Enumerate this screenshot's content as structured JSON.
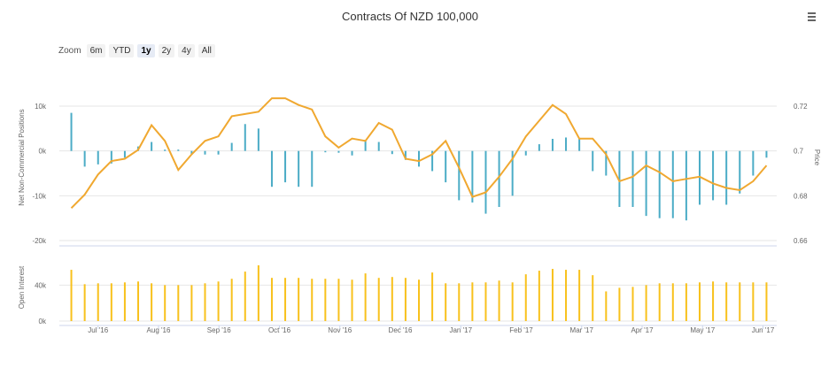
{
  "chart_data": {
    "type": "bar+line",
    "title": "Contracts Of NZD 100,000",
    "zoom": {
      "label": "Zoom",
      "buttons": [
        "6m",
        "YTD",
        "1y",
        "2y",
        "4y",
        "All"
      ],
      "active": "1y"
    },
    "x_tick_labels": [
      "Jul '16",
      "Aug '16",
      "Sep '16",
      "Oct '16",
      "Nov '16",
      "Dec '16",
      "Jan '17",
      "Feb '17",
      "Mar '17",
      "Apr '17",
      "May '17",
      "Jun '17"
    ],
    "top_panel": {
      "left_axis": {
        "label": "Net Non-Commercial Positions",
        "ticks": [
          "10k",
          "0k",
          "-10k",
          "-20k"
        ],
        "range": [
          -20000,
          10000
        ]
      },
      "right_axis": {
        "label": "Price",
        "ticks": [
          "0.72",
          "0.7",
          "0.68",
          "0.66"
        ],
        "range": [
          0.66,
          0.72
        ]
      },
      "bars": {
        "name": "Net Non-Commercial Positions",
        "color": "#4bacc6",
        "values": [
          8500,
          -3500,
          -3000,
          -2800,
          -1500,
          1000,
          2000,
          300,
          300,
          -700,
          -800,
          -800,
          1800,
          6000,
          5000,
          -8000,
          -7000,
          -8000,
          -8000,
          -300,
          -400,
          -1000,
          2500,
          2000,
          -700,
          -2000,
          -3500,
          -4500,
          -7000,
          -11000,
          -11500,
          -14000,
          -12500,
          -10000,
          -1000,
          1500,
          2700,
          3000,
          2800,
          -4500,
          -5500,
          -12500,
          -12500,
          -14500,
          -15000,
          -15000,
          -15500,
          -12000,
          -11000,
          -12000,
          -9500,
          -5500,
          -1500
        ]
      },
      "line": {
        "name": "Price",
        "color": "#f0a830",
        "values": [
          0.6745,
          0.6805,
          0.6895,
          0.6955,
          0.6965,
          0.7005,
          0.7115,
          0.7045,
          0.6915,
          0.6985,
          0.7045,
          0.7065,
          0.7155,
          0.7165,
          0.7175,
          0.7235,
          0.7235,
          0.7205,
          0.7185,
          0.7065,
          0.7015,
          0.7055,
          0.7045,
          0.7125,
          0.7095,
          0.6965,
          0.6955,
          0.6985,
          0.7045,
          0.6925,
          0.6795,
          0.6815,
          0.6885,
          0.6965,
          0.7065,
          0.7135,
          0.7205,
          0.7165,
          0.7055,
          0.7055,
          0.6985,
          0.6865,
          0.6885,
          0.6935,
          0.6905,
          0.6865,
          0.6875,
          0.6885,
          0.6855,
          0.6835,
          0.6825,
          0.6865,
          0.6935
        ]
      }
    },
    "bottom_panel": {
      "axis": {
        "label": "Open Interest",
        "ticks": [
          "40k",
          "0k"
        ],
        "range": [
          0,
          60000
        ]
      },
      "bars": {
        "name": "Open Interest",
        "color": "#f8c11c",
        "values": [
          57000,
          41000,
          42000,
          42000,
          43000,
          44000,
          42000,
          40000,
          40000,
          40000,
          42000,
          44000,
          47000,
          55000,
          62000,
          48000,
          48000,
          48000,
          47000,
          47000,
          47000,
          46000,
          53000,
          48000,
          49000,
          48000,
          46000,
          54000,
          42000,
          42000,
          43000,
          43000,
          45000,
          43000,
          52000,
          56000,
          58000,
          57000,
          57000,
          51000,
          33000,
          37000,
          38000,
          40000,
          42000,
          42000,
          42000,
          43000,
          44000,
          43000,
          43000,
          43000,
          43000
        ]
      }
    }
  }
}
